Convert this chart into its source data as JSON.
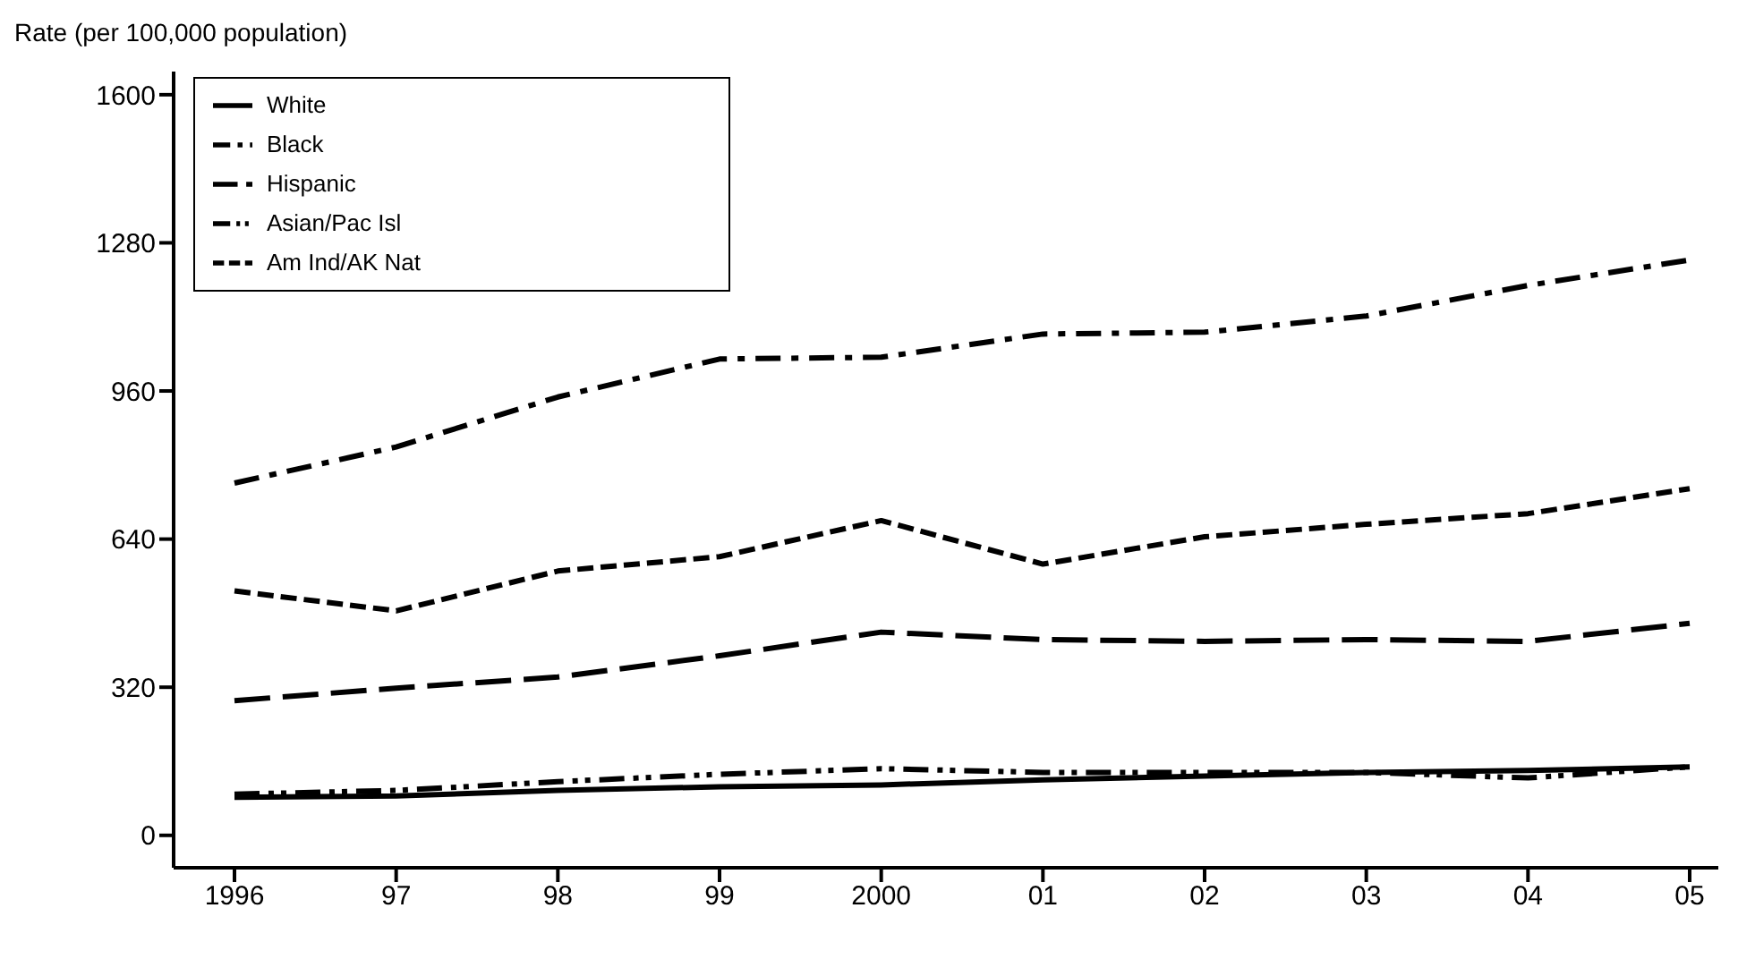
{
  "chart_data": {
    "type": "line",
    "ylabel": "Rate (per 100,000 population)",
    "categories": [
      "1996",
      "97",
      "98",
      "99",
      "2000",
      "01",
      "02",
      "03",
      "04",
      "05"
    ],
    "ylim": [
      -70,
      1650
    ],
    "yticks": [
      0,
      320,
      640,
      960,
      1280,
      1600
    ],
    "grid": false,
    "legend": "top left",
    "marker": "none",
    "series": [
      {
        "name": "White",
        "color": "#000000",
        "line_style": "solid",
        "values": [
          82,
          85,
          97,
          105,
          109,
          120,
          128,
          136,
          140,
          148
        ]
      },
      {
        "name": "Black",
        "color": "#000000",
        "line_style": "dashdot",
        "values": [
          761,
          839,
          947,
          1029,
          1033,
          1083,
          1087,
          1122,
          1188,
          1243
        ]
      },
      {
        "name": "Hispanic",
        "color": "#000000",
        "line_style": "longdash",
        "values": [
          291,
          318,
          342,
          388,
          439,
          423,
          419,
          423,
          419,
          458
        ]
      },
      {
        "name": "Asian/Pac Isl",
        "color": "#000000",
        "line_style": "dashdotdot",
        "values": [
          89,
          97,
          116,
          132,
          144,
          136,
          136,
          136,
          124,
          148
        ]
      },
      {
        "name": "Am Ind/AK Nat",
        "color": "#000000",
        "line_style": "dashed",
        "values": [
          528,
          485,
          571,
          602,
          680,
          586,
          645,
          672,
          695,
          749
        ]
      }
    ]
  }
}
